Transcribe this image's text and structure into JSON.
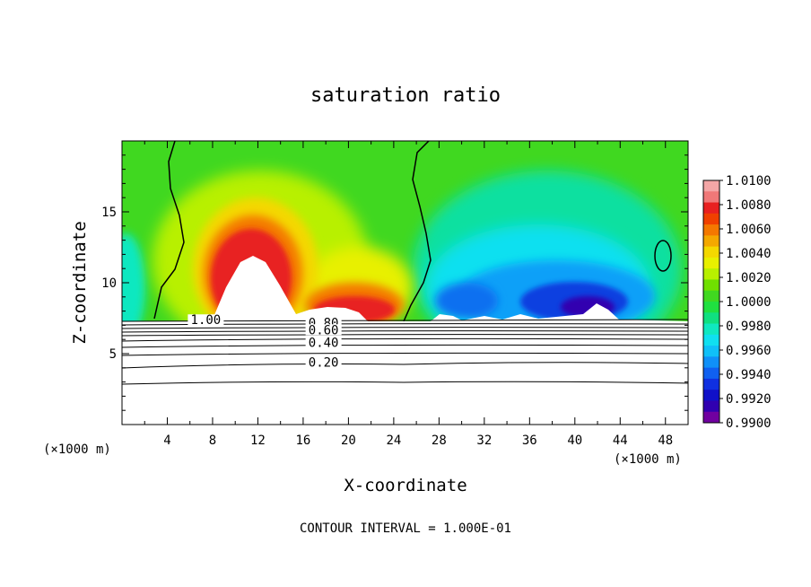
{
  "chart_data": {
    "type": "heatmap",
    "title": "saturation ratio",
    "xlabel": "X-coordinate",
    "ylabel": "Z-coordinate",
    "x_unit_left": "(×1000 m)",
    "x_unit_right": "(×1000 m)",
    "xlim": [
      0,
      50
    ],
    "ylim": [
      0,
      20
    ],
    "x_ticks": [
      4,
      8,
      12,
      16,
      20,
      24,
      28,
      32,
      36,
      40,
      44,
      48
    ],
    "y_ticks": [
      5,
      10,
      15
    ],
    "footer": "CONTOUR INTERVAL = 1.000E-01",
    "colorbar": {
      "min": 0.99,
      "max": 1.01,
      "labels": [
        "1.0100",
        "1.0080",
        "1.0060",
        "1.0040",
        "1.0020",
        "1.0000",
        "0.9980",
        "0.9960",
        "0.9940",
        "0.9920",
        "0.9900"
      ],
      "colors": [
        "#f4a6a6",
        "#f07878",
        "#e82020",
        "#f04000",
        "#f47800",
        "#f4a800",
        "#f4d800",
        "#e8f000",
        "#b8f000",
        "#70e000",
        "#40d820",
        "#20e040",
        "#10e080",
        "#10e8c0",
        "#10e0f0",
        "#10c0f8",
        "#1090f8",
        "#1060f0",
        "#1030e0",
        "#1010c8",
        "#3000b0",
        "#7000a0"
      ]
    },
    "contour_labels": [
      {
        "text": "1.00",
        "x": 7.4,
        "y": 7.2
      },
      {
        "text": "0.80",
        "x": 17.8,
        "y": 7.0
      },
      {
        "text": "0.60",
        "x": 17.8,
        "y": 6.5
      },
      {
        "text": "0.40",
        "x": 17.8,
        "y": 5.6
      },
      {
        "text": "0.20",
        "x": 17.8,
        "y": 4.2
      }
    ],
    "cloud_base_z": 7.3
  }
}
